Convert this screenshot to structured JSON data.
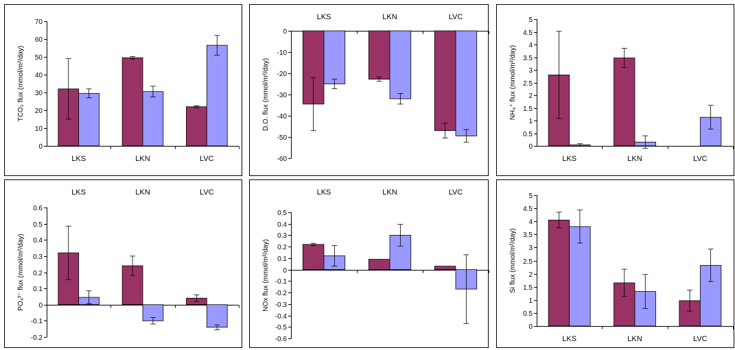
{
  "colors": {
    "series_a": "#993366",
    "series_b": "#9999ff"
  },
  "chart_data": [
    {
      "type": "bar",
      "categories": [
        "LKS",
        "LKN",
        "LVC"
      ],
      "ylabel": "TCO₂ flux (mmol/m²/day)",
      "ylim": [
        0,
        70
      ],
      "yticks": [
        0,
        10,
        20,
        30,
        40,
        50,
        60,
        70
      ],
      "category_labels_position": "bottom",
      "series": [
        {
          "values": [
            32,
            49.5,
            22
          ],
          "errors": [
            17,
            0.7,
            0.5
          ]
        },
        {
          "values": [
            29.5,
            30.5,
            56.5
          ],
          "errors": [
            2.5,
            3,
            5.5
          ]
        }
      ]
    },
    {
      "type": "bar",
      "categories": [
        "LKS",
        "LKN",
        "LVC"
      ],
      "ylabel": "D.O. flux (mmol/m²/day)",
      "ylim": [
        -60,
        0
      ],
      "yticks": [
        0,
        -10,
        -20,
        -30,
        -40,
        -50,
        -60
      ],
      "category_labels_position": "top",
      "series": [
        {
          "values": [
            -34.5,
            -22.8,
            -47
          ],
          "errors": [
            12.5,
            1,
            3.5
          ]
        },
        {
          "values": [
            -25,
            -32,
            -49.5
          ],
          "errors": [
            2.3,
            2.5,
            3
          ]
        }
      ]
    },
    {
      "type": "bar",
      "categories": [
        "LKS",
        "LKN",
        "LVC"
      ],
      "ylabel": "NH₄⁺ flux (mmol/m²/day)",
      "ylim": [
        0,
        5
      ],
      "yticks": [
        0,
        0.5,
        1,
        1.5,
        2,
        2.5,
        3,
        3.5,
        4,
        4.5,
        5
      ],
      "category_labels_position": "bottom",
      "series": [
        {
          "values": [
            2.8,
            3.47,
            0
          ],
          "errors": [
            1.72,
            0.38,
            0
          ]
        },
        {
          "values": [
            0.04,
            0.15,
            1.13
          ],
          "errors": [
            0.05,
            0.25,
            0.47
          ]
        }
      ]
    },
    {
      "type": "bar",
      "categories": [
        "LKS",
        "LKN",
        "LVC"
      ],
      "ylabel": "PO₄³⁻ flux (mmol/m²/day)",
      "ylim": [
        -0.2,
        0.6
      ],
      "yticks": [
        0.6,
        0.5,
        0.4,
        0.3,
        0.2,
        0.1,
        0,
        -0.1,
        -0.2
      ],
      "category_labels_position": "top",
      "series": [
        {
          "values": [
            0.32,
            0.24,
            0.04
          ],
          "errors": [
            0.165,
            0.06,
            0.02
          ]
        },
        {
          "values": [
            0.045,
            -0.1,
            -0.14
          ],
          "errors": [
            0.04,
            0.02,
            0.015
          ]
        }
      ]
    },
    {
      "type": "bar",
      "categories": [
        "LKS",
        "LKN",
        "LVC"
      ],
      "ylabel": "NOx flux (mmol/m²/day)",
      "ylim": [
        -0.6,
        0.5
      ],
      "yticks": [
        0.5,
        0.4,
        0.3,
        0.2,
        0.1,
        0,
        -0.1,
        -0.2,
        -0.3,
        -0.4,
        -0.5,
        -0.6
      ],
      "category_labels_position": "top",
      "series": [
        {
          "values": [
            0.22,
            0.09,
            0.03
          ],
          "errors": [
            0.01,
            0,
            0
          ]
        },
        {
          "values": [
            0.12,
            0.3,
            -0.17
          ],
          "errors": [
            0.09,
            0.095,
            0.3
          ]
        }
      ]
    },
    {
      "type": "bar",
      "categories": [
        "LKS",
        "LKN",
        "LVC"
      ],
      "ylabel": "Si flux (mmol/m²/day)",
      "ylim": [
        0,
        5
      ],
      "yticks": [
        0,
        0.5,
        1,
        1.5,
        2,
        2.5,
        3,
        3.5,
        4,
        4.5,
        5
      ],
      "category_labels_position": "bottom",
      "series": [
        {
          "values": [
            4.05,
            1.65,
            0.97
          ],
          "errors": [
            0.3,
            0.52,
            0.4
          ]
        },
        {
          "values": [
            3.8,
            1.32,
            2.32
          ],
          "errors": [
            0.63,
            0.65,
            0.62
          ]
        }
      ]
    }
  ]
}
